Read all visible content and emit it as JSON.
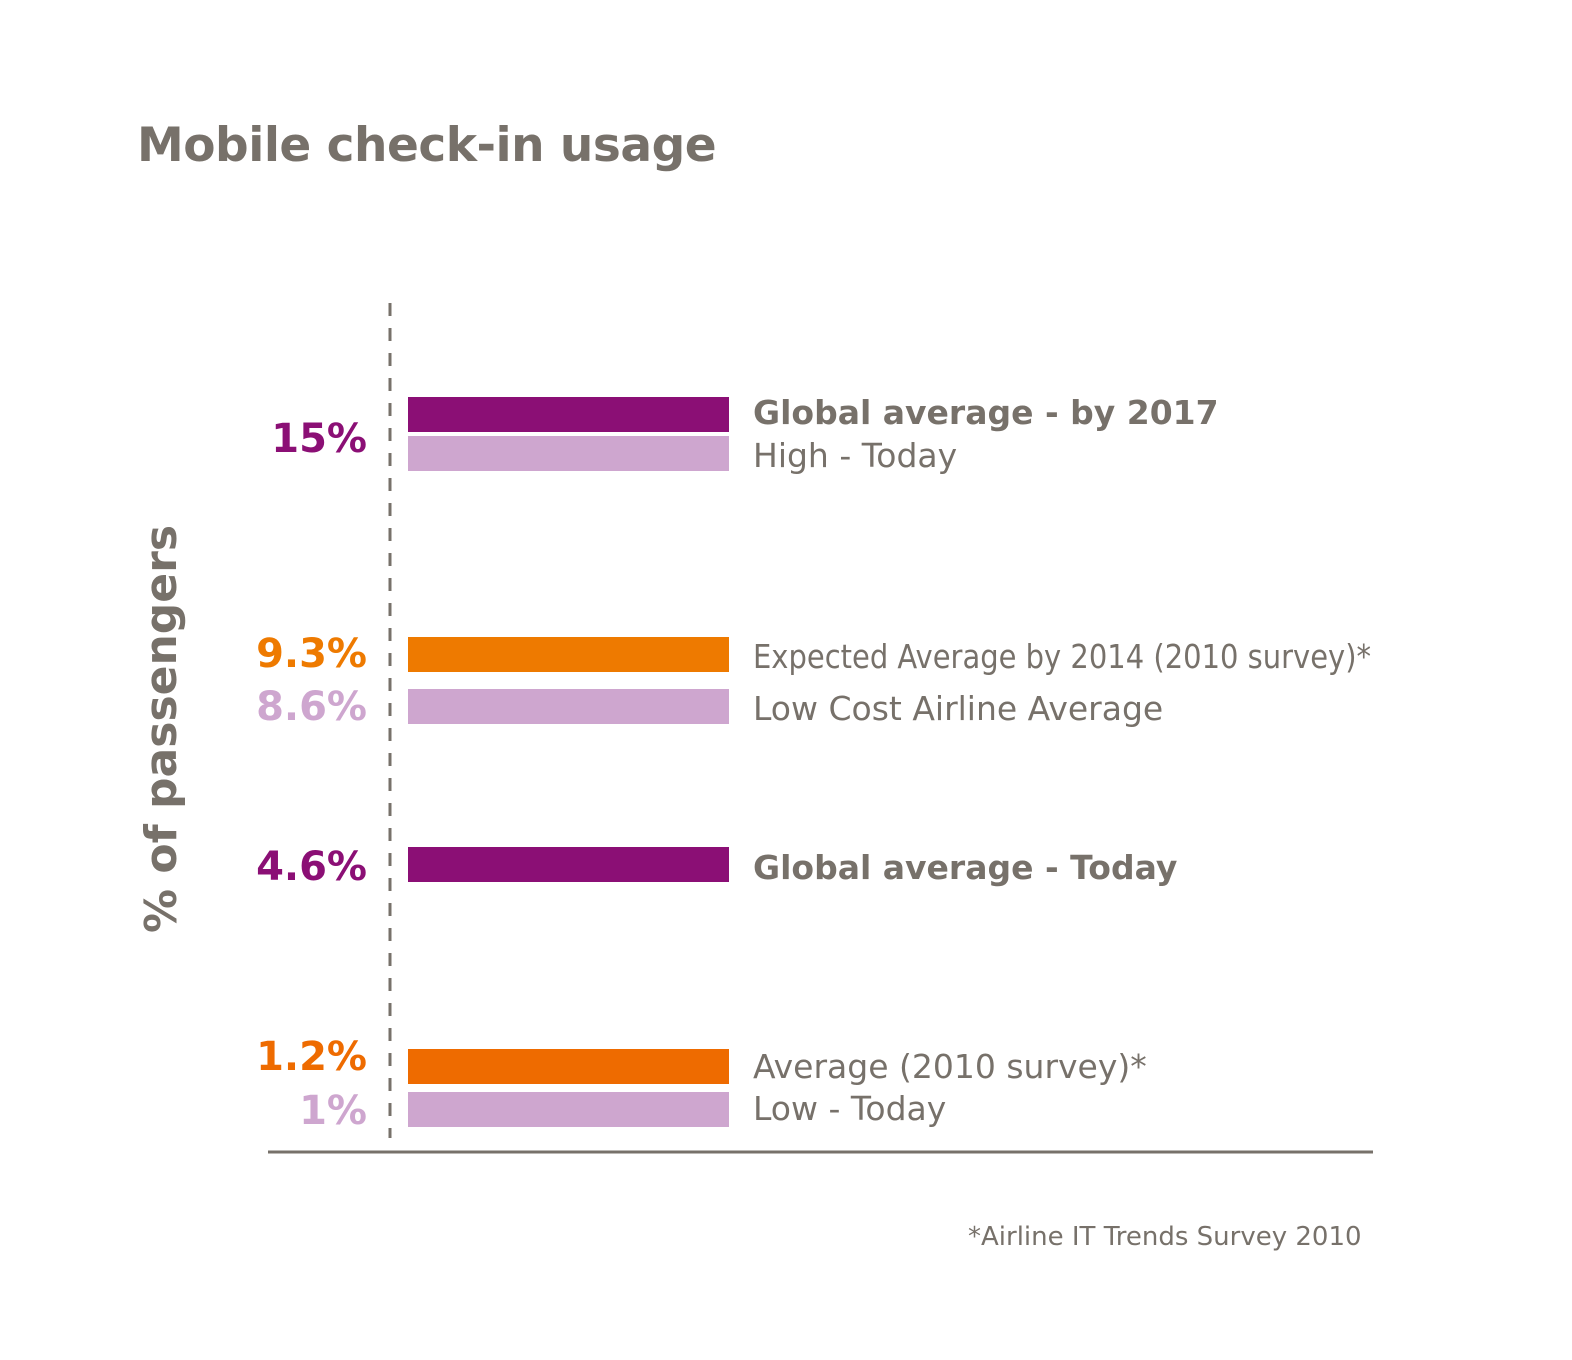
{
  "chart_data": {
    "type": "bar",
    "title": "Mobile check-in usage",
    "ylabel": "% of passengers",
    "footnote": "*Airline IT Trends Survey 2010",
    "xlim": [
      0,
      15
    ],
    "value_labels": [
      {
        "text": "15%",
        "value": 15,
        "color": "#8b0f75"
      },
      {
        "text": "9.3%",
        "value": 9.3,
        "color": "#ee7a00"
      },
      {
        "text": "8.6%",
        "value": 8.6,
        "color": "#cea6cf"
      },
      {
        "text": "4.6%",
        "value": 4.6,
        "color": "#8b0f75"
      },
      {
        "text": "1.2%",
        "value": 1.2,
        "color": "#ee6b00"
      },
      {
        "text": "1%",
        "value": 1,
        "color": "#cea6cf"
      }
    ],
    "bars": [
      {
        "name": "Global average - by 2017",
        "value": 15,
        "color": "#8b0f75",
        "bold": true
      },
      {
        "name": "High - Today",
        "value": 15,
        "color": "#cea6cf",
        "bold": false
      },
      {
        "name": "Expected Average by 2014 (2010 survey)*",
        "value": 9.3,
        "color": "#ee7a00",
        "bold": false
      },
      {
        "name": "Low Cost Airline Average",
        "value": 8.6,
        "color": "#cea6cf",
        "bold": false
      },
      {
        "name": "Global average - Today",
        "value": 4.6,
        "color": "#8b0f75",
        "bold": true
      },
      {
        "name": "Average (2010 survey)*",
        "value": 1.2,
        "color": "#ee6b00",
        "bold": false
      },
      {
        "name": "Low - Today",
        "value": 1,
        "color": "#cea6cf",
        "bold": false
      }
    ]
  }
}
